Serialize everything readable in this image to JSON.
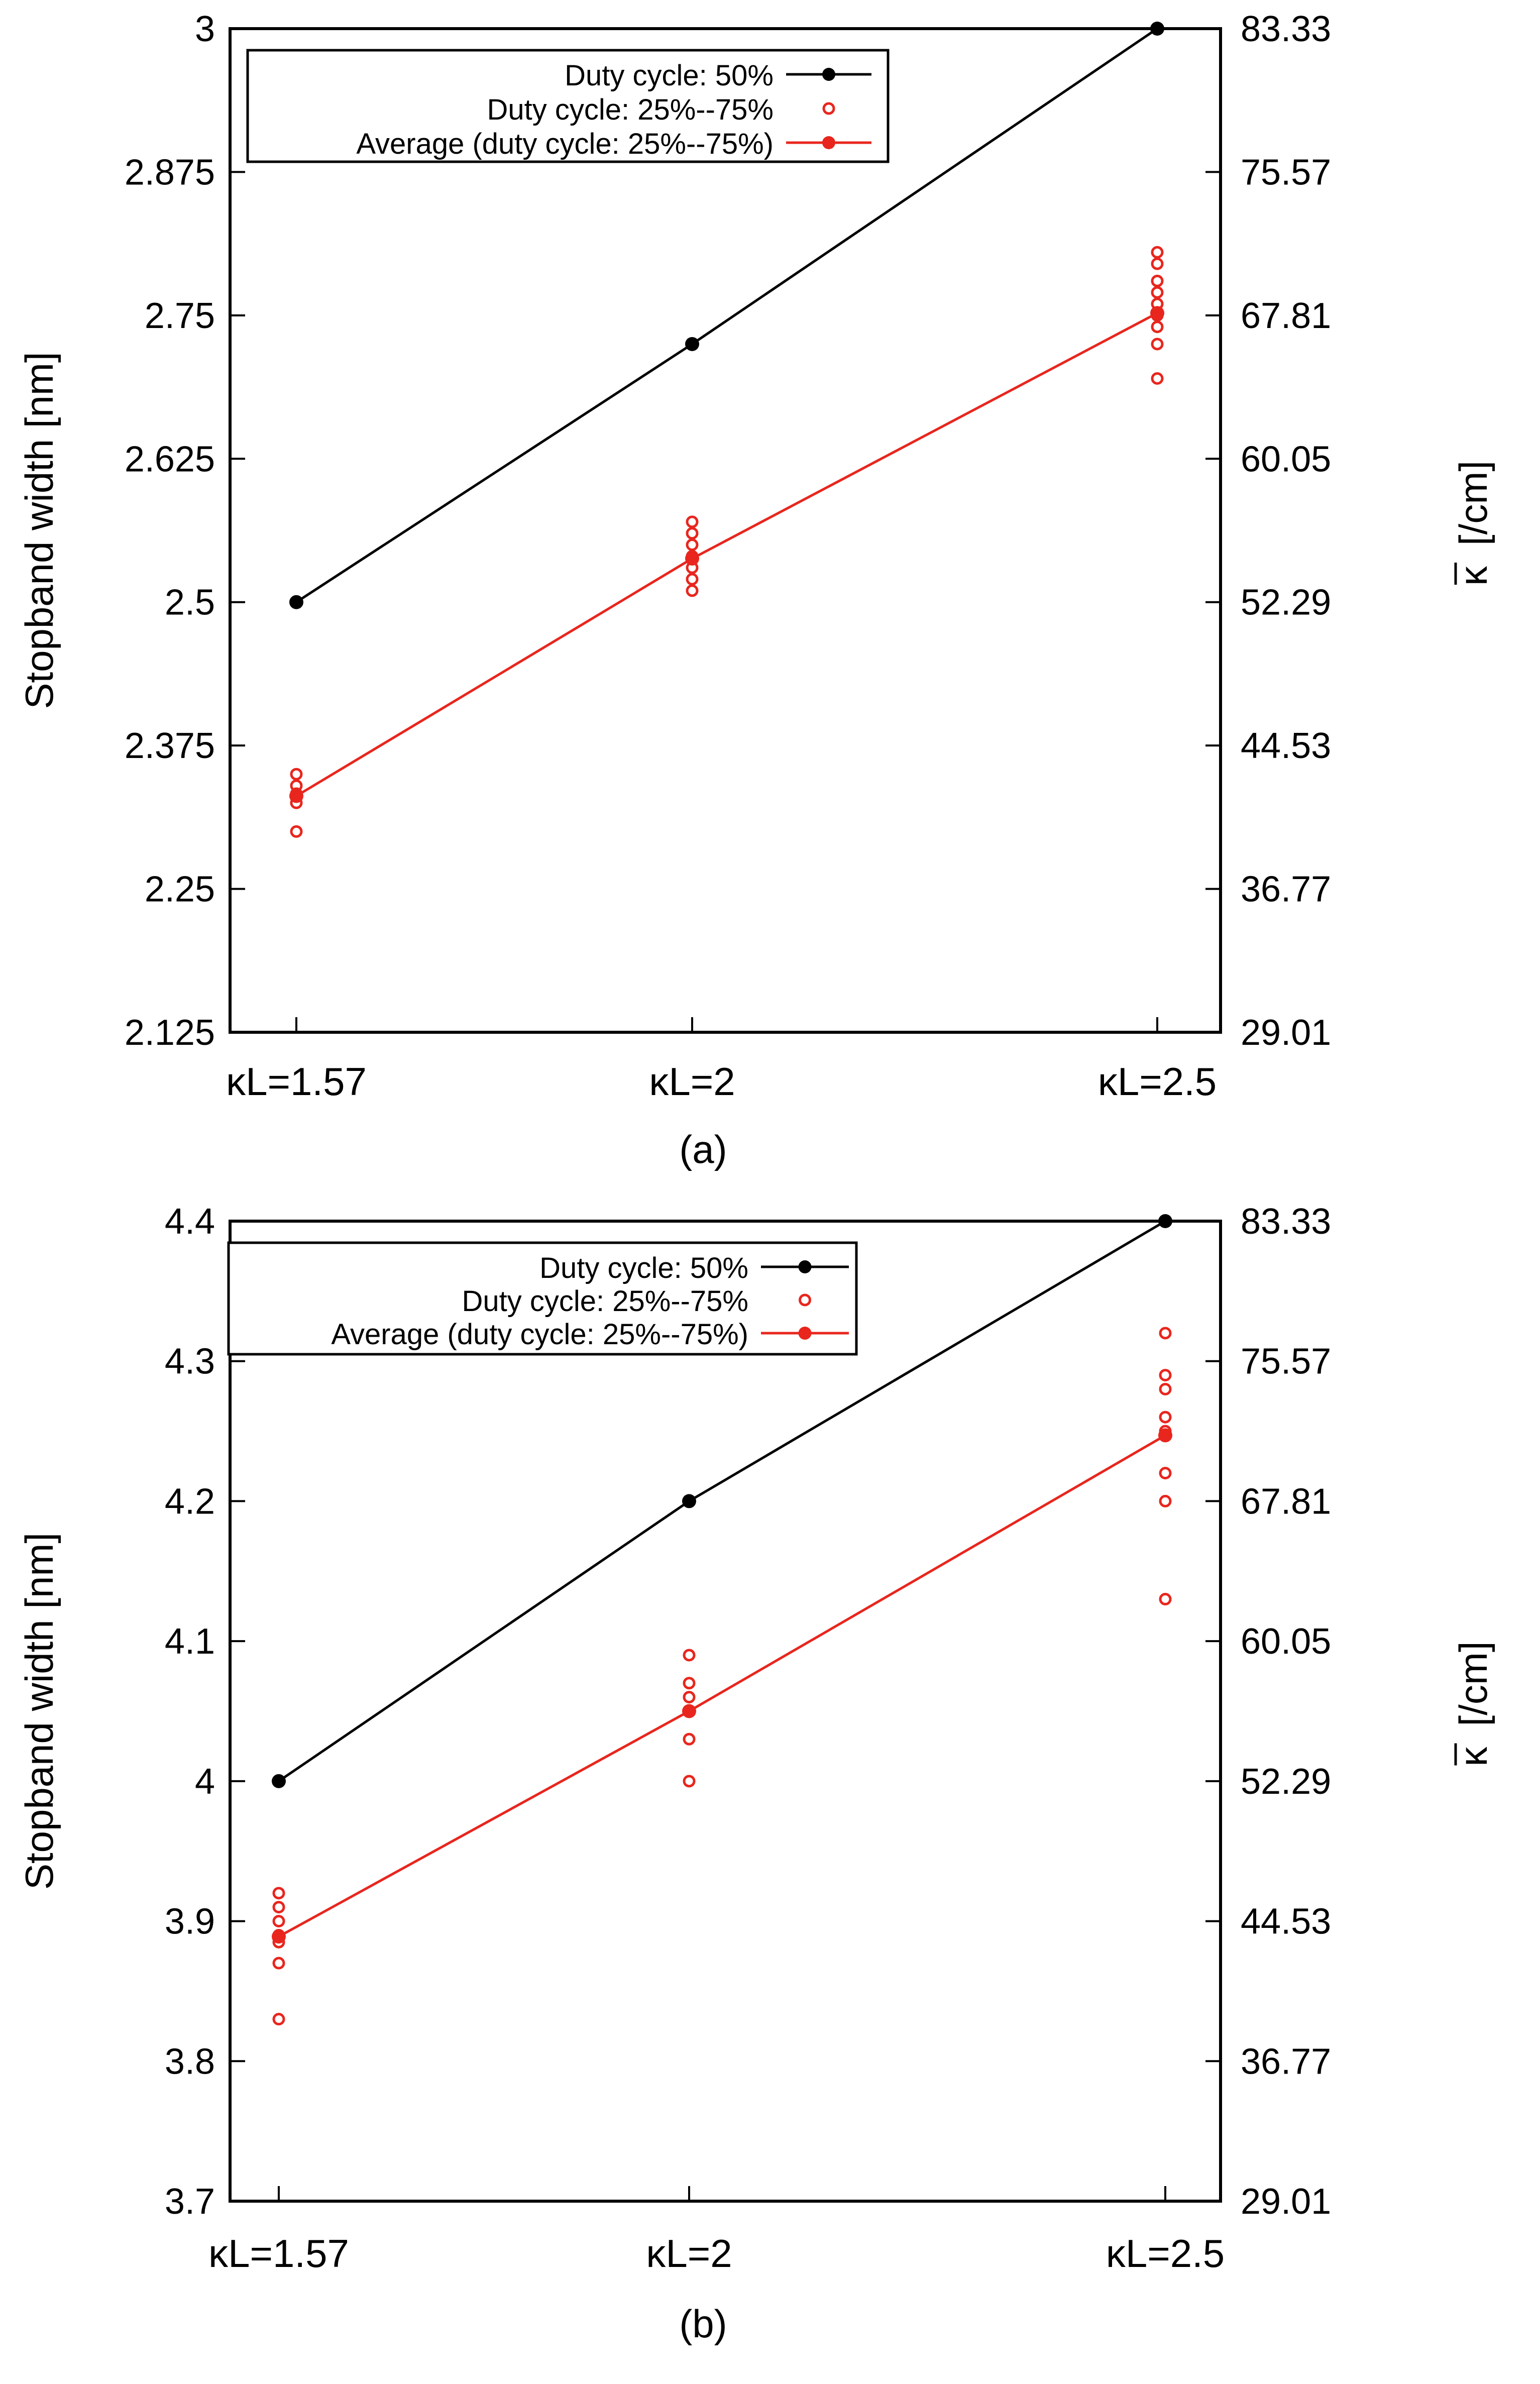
{
  "chart_data": [
    {
      "type": "line",
      "caption": "(a)",
      "categories": [
        "κL=1.57",
        "κL=2",
        "κL=2.5"
      ],
      "ylabel": "Stopband width [nm]",
      "y2label_symbol": "κ",
      "y2label_unit": "[/cm]",
      "ylim": [
        2.125,
        3.0
      ],
      "yticks": [
        "2.125",
        "2.25",
        "2.375",
        "2.5",
        "2.625",
        "2.75",
        "2.875",
        "3"
      ],
      "y2ticks": [
        "29.01",
        "36.77",
        "44.53",
        "52.29",
        "60.05",
        "67.81",
        "75.57",
        "83.33"
      ],
      "series": [
        {
          "name": "Duty cycle: 50%",
          "style": "line-point",
          "color": "#000000",
          "values": [
            2.5,
            2.725,
            3.0
          ]
        },
        {
          "name": "Duty cycle: 25%--75%",
          "style": "open-circles",
          "color": "#e8261e",
          "points": [
            [
              2.3,
              2.325,
              2.333,
              2.34,
              2.35
            ],
            [
              2.51,
              2.52,
              2.53,
              2.54,
              2.55,
              2.56,
              2.57
            ],
            [
              2.695,
              2.725,
              2.74,
              2.75,
              2.76,
              2.77,
              2.78,
              2.795,
              2.805
            ]
          ]
        },
        {
          "name": "Average (duty cycle: 25%--75%)",
          "style": "line-point",
          "color": "#e8261e",
          "values": [
            2.331,
            2.538,
            2.752
          ]
        }
      ]
    },
    {
      "type": "line",
      "caption": "(b)",
      "categories": [
        "κL=1.57",
        "κL=2",
        "κL=2.5"
      ],
      "ylabel": "Stopband width [nm]",
      "y2label_symbol": "κ",
      "y2label_unit": "[/cm]",
      "ylim": [
        3.7,
        4.4
      ],
      "yticks": [
        "3.7",
        "3.8",
        "3.9",
        "4",
        "4.1",
        "4.2",
        "4.3",
        "4.4"
      ],
      "y2ticks": [
        "29.01",
        "36.77",
        "44.53",
        "52.29",
        "60.05",
        "67.81",
        "75.57",
        "83.33"
      ],
      "series": [
        {
          "name": "Duty cycle: 50%",
          "style": "line-point",
          "color": "#000000",
          "values": [
            4.0,
            4.2,
            4.4
          ]
        },
        {
          "name": "Duty cycle: 25%--75%",
          "style": "open-circles",
          "color": "#e8261e",
          "points": [
            [
              3.83,
              3.87,
              3.885,
              3.89,
              3.9,
              3.91,
              3.92
            ],
            [
              4.0,
              4.03,
              4.05,
              4.06,
              4.07,
              4.09
            ],
            [
              4.13,
              4.2,
              4.22,
              4.25,
              4.26,
              4.28,
              4.29,
              4.32
            ]
          ]
        },
        {
          "name": "Average (duty cycle: 25%--75%)",
          "style": "line-point",
          "color": "#e8261e",
          "values": [
            3.889,
            4.05,
            4.247
          ]
        }
      ]
    }
  ]
}
